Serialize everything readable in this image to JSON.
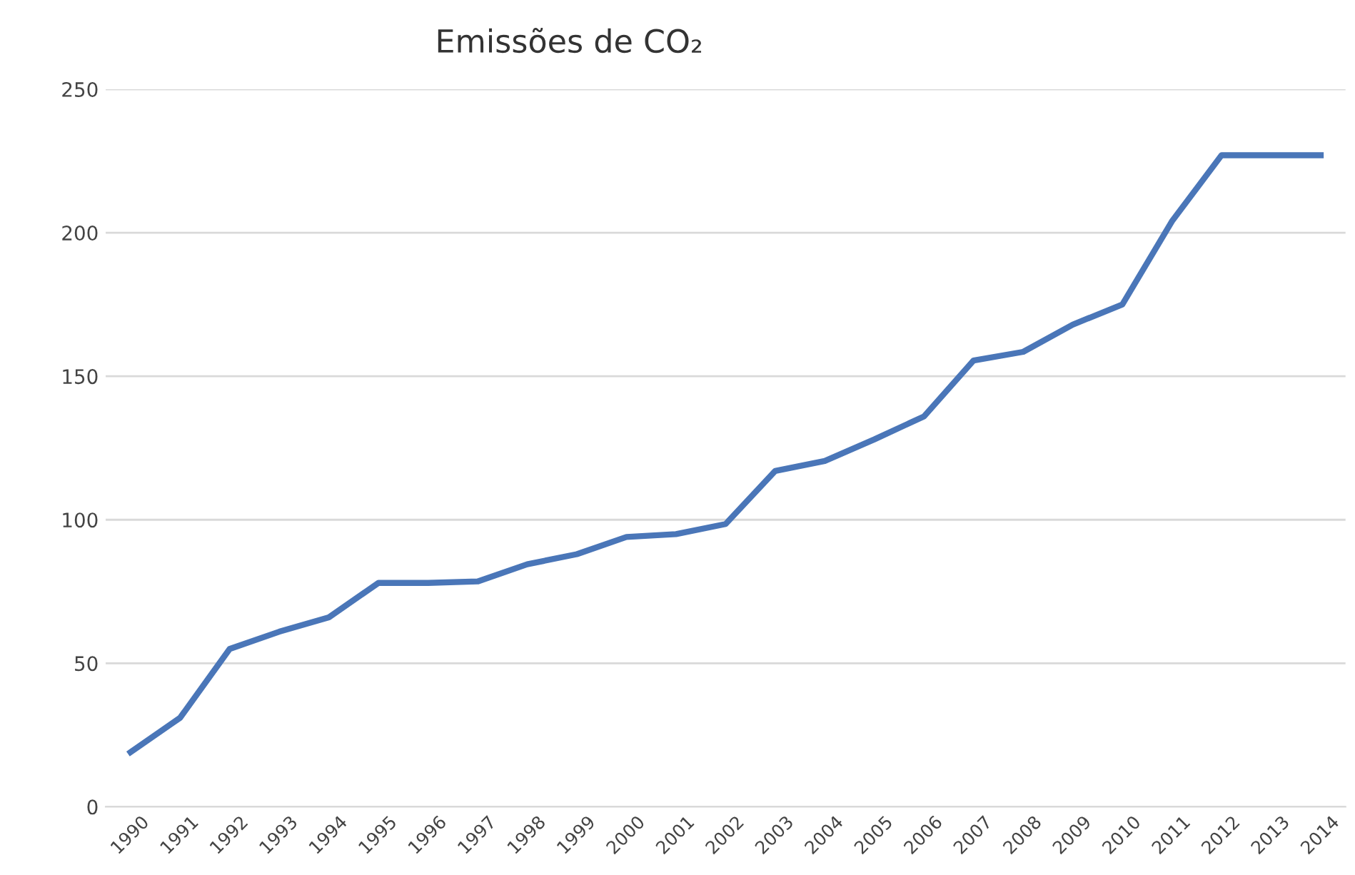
{
  "chart_data": {
    "type": "line",
    "title": "Emissões de CO₂",
    "categories": [
      "1990",
      "1991",
      "1992",
      "1993",
      "1994",
      "1995",
      "1996",
      "1997",
      "1998",
      "1999",
      "2000",
      "2001",
      "2002",
      "2003",
      "2004",
      "2005",
      "2006",
      "2007",
      "2008",
      "2009",
      "2010",
      "2011",
      "2012",
      "2013",
      "2014"
    ],
    "series": [
      {
        "color": "#4a76b8",
        "values": [
          19,
          31,
          55,
          61,
          66,
          78,
          78,
          78.5,
          84.5,
          88,
          94,
          95,
          98.5,
          117,
          120.5,
          128,
          136,
          155.5,
          158.5,
          168,
          175,
          204,
          227,
          227,
          227
        ]
      }
    ],
    "ylim": [
      0,
      250
    ],
    "yticks": [
      0,
      50,
      100,
      150,
      200,
      250
    ],
    "grid": "y",
    "marker": "none",
    "line_style": "solid"
  }
}
